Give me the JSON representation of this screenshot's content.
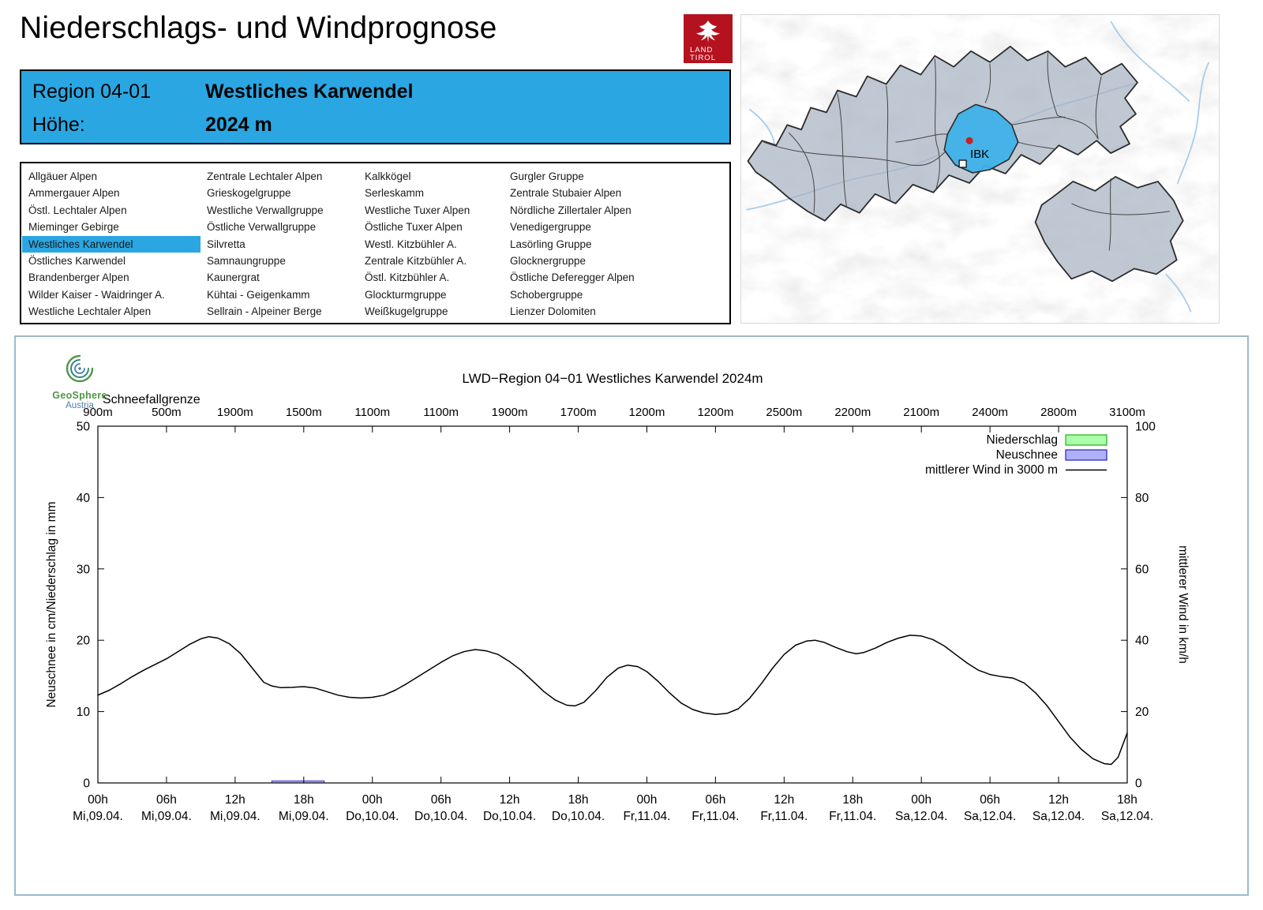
{
  "header": {
    "title": "Niederschlags- und Windprognose",
    "logo": {
      "line1": "LAND",
      "line2": "TIROL"
    }
  },
  "map": {
    "marker_label": "IBK"
  },
  "info_box": {
    "region_label": "Region 04-01",
    "region_name": "Westliches Karwendel",
    "altitude_label": "Höhe:",
    "altitude_value": "2024 m"
  },
  "region_list": {
    "selected": "Westliches Karwendel",
    "columns": [
      [
        "Allgäuer Alpen",
        "Ammergauer Alpen",
        "Östl. Lechtaler Alpen",
        "Mieminger Gebirge",
        "Westliches Karwendel",
        "Östliches Karwendel",
        "Brandenberger Alpen",
        "Wilder Kaiser - Waidringer A.",
        "Westliche Lechtaler Alpen"
      ],
      [
        "Zentrale Lechtaler Alpen",
        "Grieskogelgruppe",
        "Westliche Verwallgruppe",
        "Östliche Verwallgruppe",
        "Silvretta",
        "Samnaungruppe",
        "Kaunergrat",
        "Kühtai - Geigenkamm",
        "Sellrain - Alpeiner Berge"
      ],
      [
        "Kalkkögel",
        "Serleskamm",
        "Westliche Tuxer Alpen",
        "Östliche Tuxer Alpen",
        "Westl. Kitzbühler A.",
        "Zentrale Kitzbühler A.",
        "Östl. Kitzbühler A.",
        "Glockturmgruppe",
        "Weißkugelgruppe"
      ],
      [
        "Gurgler Gruppe",
        "Zentrale Stubaier Alpen",
        "Nördliche Zillertaler Alpen",
        "Venedigergruppe",
        "Lasörling Gruppe",
        "Glocknergruppe",
        "Östliche Deferegger Alpen",
        "Schobergruppe",
        "Lienzer Dolomiten"
      ]
    ]
  },
  "branding": {
    "geosphere_line1": "GeoSphere",
    "geosphere_line2": "Austria"
  },
  "chart_data": {
    "type": "line",
    "title": "LWD−Region 04−01 Westliches Karwendel 2024m",
    "snowline_label": "Schneefallgrenze",
    "snowline_values": [
      "900m",
      "500m",
      "1900m",
      "1500m",
      "1100m",
      "1100m",
      "1900m",
      "1700m",
      "1200m",
      "1200m",
      "2500m",
      "2200m",
      "2100m",
      "2400m",
      "2800m",
      "3100m"
    ],
    "ylabel_left": "Neuschnee in cm/Niederschlag in mm",
    "ylabel_right": "mittlerer Wind in km/h",
    "ylim_left": [
      0,
      50
    ],
    "ylim_right": [
      0,
      100
    ],
    "yticks_left": [
      0,
      10,
      20,
      30,
      40,
      50
    ],
    "yticks_right": [
      0,
      20,
      40,
      60,
      80,
      100
    ],
    "x_hours_range": [
      0,
      90
    ],
    "x_axis": [
      {
        "hour": "00h",
        "date": "Mi,09.04."
      },
      {
        "hour": "06h",
        "date": "Mi,09.04."
      },
      {
        "hour": "12h",
        "date": "Mi,09.04."
      },
      {
        "hour": "18h",
        "date": "Mi,09.04."
      },
      {
        "hour": "00h",
        "date": "Do,10.04."
      },
      {
        "hour": "06h",
        "date": "Do,10.04."
      },
      {
        "hour": "12h",
        "date": "Do,10.04."
      },
      {
        "hour": "18h",
        "date": "Do,10.04."
      },
      {
        "hour": "00h",
        "date": "Fr,11.04."
      },
      {
        "hour": "06h",
        "date": "Fr,11.04."
      },
      {
        "hour": "12h",
        "date": "Fr,11.04."
      },
      {
        "hour": "18h",
        "date": "Fr,11.04."
      },
      {
        "hour": "00h",
        "date": "Sa,12.04."
      },
      {
        "hour": "06h",
        "date": "Sa,12.04."
      },
      {
        "hour": "12h",
        "date": "Sa,12.04."
      },
      {
        "hour": "18h",
        "date": "Sa,12.04."
      }
    ],
    "legend": [
      {
        "label": "Niederschlag",
        "type": "box",
        "fill": "#aaffaa",
        "stroke": "#22aa22"
      },
      {
        "label": "Neuschnee",
        "type": "box",
        "fill": "#b0b0f8",
        "stroke": "#2020c0"
      },
      {
        "label": "mittlerer Wind in 3000 m",
        "type": "line",
        "stroke": "#000000"
      }
    ],
    "neuschnee_bar": {
      "start_hour": 15.2,
      "end_hour": 19.8,
      "value_mm": 0.3
    },
    "wind_series": {
      "name": "mittlerer Wind in 3000 m",
      "units_right_axis": "km/h",
      "points": [
        [
          0,
          12.3
        ],
        [
          1,
          13.0
        ],
        [
          2,
          13.9
        ],
        [
          3,
          14.9
        ],
        [
          4,
          15.8
        ],
        [
          5,
          16.6
        ],
        [
          6,
          17.4
        ],
        [
          7,
          18.4
        ],
        [
          8,
          19.4
        ],
        [
          9,
          20.2
        ],
        [
          9.7,
          20.5
        ],
        [
          10.5,
          20.3
        ],
        [
          11.5,
          19.5
        ],
        [
          12.5,
          18.1
        ],
        [
          13.5,
          16.1
        ],
        [
          14.5,
          14.1
        ],
        [
          15.2,
          13.6
        ],
        [
          16,
          13.35
        ],
        [
          17,
          13.4
        ],
        [
          18,
          13.5
        ],
        [
          19,
          13.3
        ],
        [
          20,
          12.8
        ],
        [
          21,
          12.3
        ],
        [
          22,
          12.0
        ],
        [
          23,
          11.9
        ],
        [
          24,
          12.0
        ],
        [
          25,
          12.3
        ],
        [
          26,
          13.0
        ],
        [
          27,
          13.9
        ],
        [
          28,
          14.9
        ],
        [
          29,
          15.9
        ],
        [
          30,
          16.9
        ],
        [
          31,
          17.8
        ],
        [
          32,
          18.4
        ],
        [
          33,
          18.7
        ],
        [
          34,
          18.5
        ],
        [
          35,
          18.0
        ],
        [
          36,
          17.0
        ],
        [
          37,
          15.8
        ],
        [
          38,
          14.3
        ],
        [
          39,
          12.8
        ],
        [
          40,
          11.6
        ],
        [
          41,
          10.9
        ],
        [
          41.7,
          10.8
        ],
        [
          42.5,
          11.3
        ],
        [
          43.5,
          12.9
        ],
        [
          44.5,
          14.8
        ],
        [
          45.5,
          16.1
        ],
        [
          46.3,
          16.5
        ],
        [
          47.2,
          16.3
        ],
        [
          48,
          15.6
        ],
        [
          49,
          14.2
        ],
        [
          50,
          12.6
        ],
        [
          51,
          11.2
        ],
        [
          52,
          10.3
        ],
        [
          53,
          9.8
        ],
        [
          54,
          9.6
        ],
        [
          55,
          9.75
        ],
        [
          56,
          10.4
        ],
        [
          57,
          11.9
        ],
        [
          58,
          13.9
        ],
        [
          59,
          16.1
        ],
        [
          60,
          18.0
        ],
        [
          61,
          19.3
        ],
        [
          62,
          19.9
        ],
        [
          62.7,
          20.0
        ],
        [
          63.5,
          19.7
        ],
        [
          64.5,
          19.0
        ],
        [
          65.5,
          18.4
        ],
        [
          66.3,
          18.1
        ],
        [
          67,
          18.3
        ],
        [
          68,
          18.9
        ],
        [
          69,
          19.7
        ],
        [
          70,
          20.3
        ],
        [
          71,
          20.7
        ],
        [
          72,
          20.6
        ],
        [
          73,
          20.1
        ],
        [
          74,
          19.2
        ],
        [
          75,
          18.0
        ],
        [
          76,
          16.8
        ],
        [
          77,
          15.8
        ],
        [
          78,
          15.2
        ],
        [
          79,
          14.9
        ],
        [
          80,
          14.7
        ],
        [
          81,
          14.0
        ],
        [
          82,
          12.6
        ],
        [
          83,
          10.8
        ],
        [
          84,
          8.6
        ],
        [
          85,
          6.4
        ],
        [
          86,
          4.7
        ],
        [
          87,
          3.4
        ],
        [
          88,
          2.7
        ],
        [
          88.6,
          2.6
        ],
        [
          89.2,
          3.6
        ],
        [
          90,
          7.0
        ]
      ]
    }
  }
}
